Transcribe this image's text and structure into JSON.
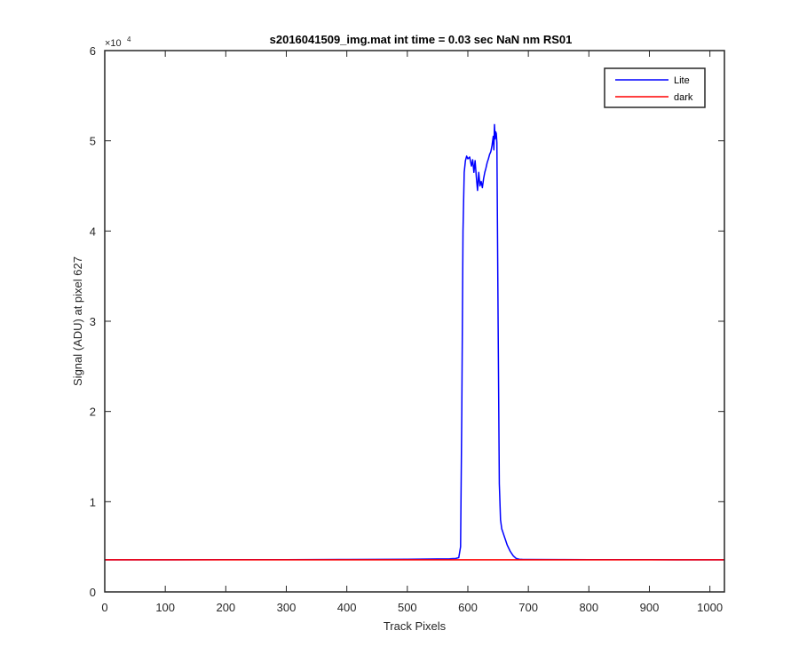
{
  "chart_data": {
    "type": "line",
    "title": "s2016041509_img.mat int time = 0.03 sec  NaN nm RS01",
    "xlabel": "Track Pixels",
    "ylabel": "Signal (ADU) at pixel 627",
    "y_exponent_label": "×10",
    "y_exponent_power": "4",
    "xlim": [
      0,
      1024
    ],
    "ylim": [
      0,
      60000
    ],
    "x_ticks": [
      0,
      100,
      200,
      300,
      400,
      500,
      600,
      700,
      800,
      900,
      1000
    ],
    "x_tick_labels": [
      "0",
      "100",
      "200",
      "300",
      "400",
      "500",
      "600",
      "700",
      "800",
      "900",
      "1000"
    ],
    "y_ticks": [
      0,
      10000,
      20000,
      30000,
      40000,
      50000,
      60000
    ],
    "y_tick_labels": [
      "0",
      "1",
      "2",
      "3",
      "4",
      "5",
      "6"
    ],
    "grid": false,
    "legend_position": "top-right",
    "colors": {
      "lite": "#0000ff",
      "dark": "#ff0000",
      "axis": "#262626"
    },
    "series": [
      {
        "name": "Lite",
        "color": "#0000ff",
        "x": [
          0,
          100,
          200,
          300,
          400,
          450,
          500,
          550,
          570,
          580,
          585,
          588,
          590,
          592,
          594,
          596,
          598,
          600,
          603,
          606,
          608,
          610,
          612,
          614,
          616,
          618,
          620,
          622,
          624,
          626,
          628,
          630,
          632,
          634,
          636,
          638,
          640,
          642,
          643,
          644,
          645,
          646,
          647,
          648,
          650,
          652,
          654,
          656,
          658,
          660,
          662,
          665,
          670,
          675,
          680,
          685,
          690,
          700,
          750,
          800,
          900,
          1024
        ],
        "y": [
          3550,
          3550,
          3560,
          3570,
          3590,
          3600,
          3620,
          3650,
          3670,
          3700,
          3800,
          5000,
          20000,
          40000,
          46500,
          47800,
          48300,
          48000,
          48200,
          47200,
          47900,
          46500,
          47800,
          46000,
          44500,
          46500,
          45000,
          45500,
          44800,
          45800,
          46500,
          47000,
          47600,
          48000,
          48500,
          48800,
          49500,
          50500,
          49000,
          51800,
          50200,
          51000,
          50800,
          49800,
          30000,
          12000,
          8000,
          7000,
          6600,
          6200,
          5800,
          5200,
          4500,
          4000,
          3700,
          3620,
          3600,
          3590,
          3580,
          3570,
          3560,
          3550
        ]
      },
      {
        "name": "dark",
        "color": "#ff0000",
        "x": [
          0,
          100,
          200,
          300,
          400,
          500,
          600,
          700,
          800,
          900,
          1024
        ],
        "y": [
          3550,
          3550,
          3550,
          3550,
          3550,
          3550,
          3550,
          3550,
          3550,
          3550,
          3550
        ]
      }
    ]
  }
}
